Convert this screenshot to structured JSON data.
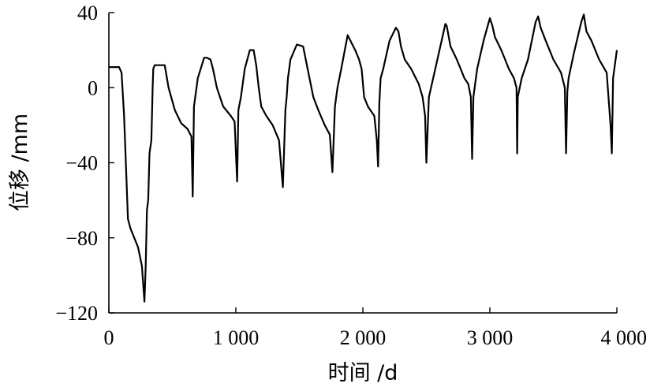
{
  "chart_data": {
    "type": "line",
    "title": "",
    "xlabel": "时间 /d",
    "ylabel": "位移 /mm",
    "xlim": [
      0,
      4000
    ],
    "ylim": [
      -120,
      40
    ],
    "xticks": [
      0,
      1000,
      2000,
      3000,
      4000
    ],
    "xtick_labels": [
      "0",
      "1 000",
      "2 000",
      "3 000",
      "4 000"
    ],
    "yticks": [
      -120,
      -80,
      -40,
      0,
      40
    ],
    "ytick_labels": [
      "−120",
      "−80",
      "−40",
      "0",
      "40"
    ],
    "grid": false,
    "legend": "none",
    "series": [
      {
        "color": "#000000",
        "x": [
          0,
          80,
          100,
          120,
          150,
          170,
          200,
          230,
          260,
          280,
          290,
          300,
          310,
          320,
          335,
          345,
          350,
          360,
          380,
          440,
          470,
          520,
          570,
          620,
          650,
          660,
          670,
          680,
          700,
          750,
          770,
          800,
          820,
          850,
          900,
          960,
          990,
          1010,
          1020,
          1040,
          1070,
          1110,
          1140,
          1160,
          1180,
          1200,
          1240,
          1290,
          1340,
          1370,
          1390,
          1400,
          1410,
          1430,
          1480,
          1530,
          1550,
          1580,
          1610,
          1650,
          1700,
          1740,
          1760,
          1780,
          1800,
          1830,
          1880,
          1940,
          1970,
          1990,
          2010,
          2040,
          2090,
          2110,
          2120,
          2130,
          2140,
          2160,
          2210,
          2260,
          2280,
          2300,
          2330,
          2380,
          2440,
          2470,
          2490,
          2500,
          2520,
          2570,
          2620,
          2650,
          2660,
          2690,
          2740,
          2800,
          2830,
          2850,
          2860,
          2870,
          2900,
          2950,
          3000,
          3020,
          3040,
          3090,
          3150,
          3190,
          3210,
          3215,
          3220,
          3250,
          3300,
          3360,
          3380,
          3400,
          3440,
          3500,
          3560,
          3590,
          3600,
          3610,
          3620,
          3660,
          3720,
          3740,
          3760,
          3800,
          3860,
          3920,
          3950,
          3960,
          3970,
          3990,
          4000
        ],
        "y": [
          11,
          11,
          8,
          -15,
          -70,
          -75,
          -80,
          -85,
          -95,
          -114,
          -95,
          -65,
          -60,
          -35,
          -28,
          0,
          10,
          12,
          12,
          12,
          0,
          -12,
          -19,
          -22,
          -26,
          -58,
          -10,
          -5,
          5,
          16,
          16,
          15,
          10,
          0,
          -10,
          -15,
          -18,
          -50,
          -12,
          -5,
          10,
          20,
          20,
          12,
          0,
          -10,
          -15,
          -20,
          -28,
          -53,
          -12,
          -5,
          5,
          15,
          23,
          22,
          15,
          5,
          -5,
          -12,
          -20,
          -25,
          -45,
          -10,
          0,
          10,
          28,
          20,
          15,
          10,
          -5,
          -10,
          -15,
          -28,
          -42,
          -8,
          5,
          10,
          25,
          32,
          30,
          22,
          15,
          10,
          2,
          -5,
          -15,
          -40,
          -5,
          10,
          25,
          34,
          33,
          22,
          15,
          5,
          2,
          -5,
          -38,
          -5,
          10,
          25,
          37,
          33,
          27,
          20,
          10,
          5,
          0,
          -35,
          -5,
          5,
          15,
          35,
          38,
          32,
          25,
          15,
          8,
          0,
          -35,
          -2,
          5,
          18,
          35,
          39,
          30,
          25,
          15,
          8,
          -20,
          -35,
          5,
          15,
          20
        ]
      }
    ]
  }
}
